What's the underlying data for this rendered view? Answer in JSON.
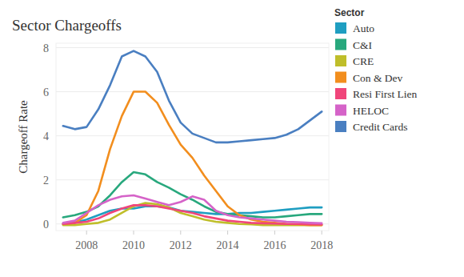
{
  "chart_data": {
    "type": "line",
    "title": "Sector Chargeoffs",
    "y_label": "Chargeoff Rate",
    "legend_title": "Sector",
    "legend": "right",
    "grid": true,
    "xlim": [
      2006.7,
      2018.3
    ],
    "xticks": [
      2008,
      2010,
      2012,
      2014,
      2016,
      2018
    ],
    "ylim": [
      -0.3,
      8.2
    ],
    "yticks": [
      0,
      2,
      4,
      6,
      8
    ],
    "x": [
      2007,
      2007.5,
      2008,
      2008.5,
      2009,
      2009.5,
      2010,
      2010.5,
      2011,
      2011.5,
      2012,
      2012.5,
      2013,
      2013.5,
      2014,
      2014.5,
      2015,
      2015.5,
      2016,
      2016.5,
      2017,
      2017.5,
      2018
    ],
    "series": [
      {
        "name": "Auto",
        "color": "#1f9ec1",
        "values": [
          0.0,
          0.05,
          0.2,
          0.4,
          0.6,
          0.7,
          0.7,
          0.8,
          0.8,
          0.75,
          0.6,
          0.55,
          0.5,
          0.45,
          0.45,
          0.5,
          0.5,
          0.55,
          0.6,
          0.65,
          0.7,
          0.75,
          0.75
        ]
      },
      {
        "name": "C&I",
        "color": "#28a87d",
        "values": [
          0.3,
          0.4,
          0.55,
          0.8,
          1.3,
          1.9,
          2.35,
          2.25,
          1.9,
          1.65,
          1.35,
          1.1,
          0.8,
          0.55,
          0.45,
          0.4,
          0.35,
          0.3,
          0.3,
          0.35,
          0.4,
          0.45,
          0.45
        ]
      },
      {
        "name": "CRE",
        "color": "#bfbe2a",
        "values": [
          -0.05,
          -0.05,
          0.0,
          0.05,
          0.2,
          0.5,
          0.8,
          0.95,
          0.9,
          0.75,
          0.5,
          0.35,
          0.2,
          0.1,
          0.05,
          0.0,
          -0.02,
          -0.05,
          -0.05,
          -0.05,
          -0.05,
          -0.05,
          -0.05
        ]
      },
      {
        "name": "Con & Dev",
        "color": "#f28e1e",
        "values": [
          0.0,
          0.05,
          0.4,
          1.5,
          3.4,
          4.9,
          6.0,
          6.0,
          5.5,
          4.5,
          3.6,
          3.0,
          2.2,
          1.5,
          0.8,
          0.4,
          0.2,
          0.1,
          0.05,
          0.0,
          -0.02,
          -0.05,
          -0.05
        ]
      },
      {
        "name": "Resi First Lien",
        "color": "#f0457a",
        "values": [
          0.0,
          0.05,
          0.1,
          0.25,
          0.5,
          0.7,
          0.85,
          0.85,
          0.8,
          0.7,
          0.6,
          0.5,
          0.35,
          0.25,
          0.15,
          0.1,
          0.05,
          0.03,
          0.02,
          0.0,
          0.0,
          -0.02,
          -0.03
        ]
      },
      {
        "name": "HELOC",
        "color": "#d563c8",
        "values": [
          0.05,
          0.15,
          0.5,
          0.85,
          1.1,
          1.25,
          1.3,
          1.15,
          1.0,
          0.85,
          1.0,
          1.25,
          1.1,
          0.6,
          0.4,
          0.3,
          0.25,
          0.2,
          0.15,
          0.1,
          0.08,
          0.05,
          0.03
        ]
      },
      {
        "name": "Credit Cards",
        "color": "#4a7fc1",
        "values": [
          4.45,
          4.3,
          4.4,
          5.2,
          6.3,
          7.6,
          7.85,
          7.6,
          6.9,
          5.6,
          4.6,
          4.1,
          3.9,
          3.7,
          3.7,
          3.75,
          3.8,
          3.85,
          3.9,
          4.05,
          4.3,
          4.7,
          5.1
        ]
      }
    ]
  }
}
